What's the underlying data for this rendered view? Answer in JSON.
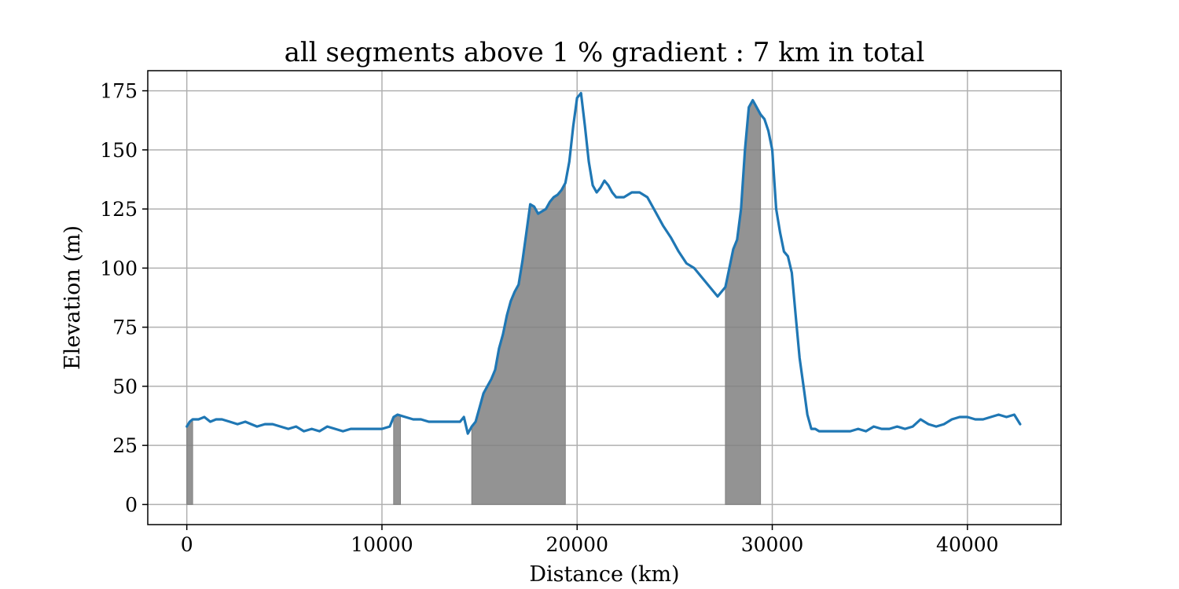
{
  "chart_data": {
    "type": "line",
    "title": "all segments above 1 % gradient : 7 km in total",
    "xlabel": "Distance (km)",
    "ylabel": "Elevation (m)",
    "xlim": [
      -2000,
      44800
    ],
    "ylim": [
      -8.5,
      183.5
    ],
    "xticks": [
      0,
      10000,
      20000,
      30000,
      40000
    ],
    "yticks": [
      0,
      25,
      50,
      75,
      100,
      125,
      150,
      175
    ],
    "xtick_labels": [
      "0",
      "10000",
      "20000",
      "30000",
      "40000"
    ],
    "ytick_labels": [
      "0",
      "25",
      "50",
      "75",
      "100",
      "125",
      "150",
      "175"
    ],
    "grid": true,
    "colors": {
      "line": "#1f77b4",
      "fill": "#808080",
      "grid": "#b0b0b0"
    },
    "series": [
      {
        "x": [
          0,
          150,
          300,
          600,
          900,
          1200,
          1500,
          1800,
          2200,
          2600,
          3000,
          3300,
          3600,
          4000,
          4400,
          4800,
          5200,
          5600,
          6000,
          6400,
          6800,
          7200,
          7600,
          8000,
          8400,
          8800,
          9200,
          9600,
          10000,
          10400,
          10600,
          10800,
          11200,
          11600,
          12000,
          12400,
          12800,
          13200,
          13600,
          14000,
          14200,
          14400,
          14600,
          14800,
          15000,
          15200,
          15400,
          15600,
          15800,
          16000,
          16200,
          16400,
          16600,
          16800,
          17000,
          17200,
          17400,
          17600,
          17800,
          18000,
          18200,
          18400,
          18600,
          18800,
          19000,
          19200,
          19400,
          19600,
          19800,
          20000,
          20200,
          20400,
          20600,
          20800,
          21000,
          21200,
          21400,
          21600,
          21800,
          22000,
          22400,
          22800,
          23200,
          23600,
          24000,
          24400,
          24800,
          25200,
          25600,
          26000,
          26400,
          26800,
          27200,
          27600,
          27800,
          28000,
          28200,
          28400,
          28600,
          28800,
          29000,
          29200,
          29400,
          29600,
          29800,
          30000,
          30200,
          30400,
          30600,
          30800,
          31000,
          31200,
          31400,
          31600,
          31800,
          32000,
          32200,
          32400,
          32800,
          33200,
          33600,
          34000,
          34400,
          34800,
          35200,
          35600,
          36000,
          36400,
          36800,
          37200,
          37600,
          38000,
          38400,
          38800,
          39200,
          39600,
          40000,
          40400,
          40800,
          41200,
          41600,
          42000,
          42400,
          42700
        ],
        "y": [
          33,
          35,
          36,
          36,
          37,
          35,
          36,
          36,
          35,
          34,
          35,
          34,
          33,
          34,
          34,
          33,
          32,
          33,
          31,
          32,
          31,
          33,
          32,
          31,
          32,
          32,
          32,
          32,
          32,
          33,
          37,
          38,
          37,
          36,
          36,
          35,
          35,
          35,
          35,
          35,
          37,
          30,
          33,
          35,
          41,
          47,
          50,
          53,
          57,
          66,
          72,
          80,
          86,
          90,
          93,
          103,
          115,
          127,
          126,
          123,
          124,
          125,
          128,
          130,
          131,
          133,
          136,
          145,
          160,
          172,
          174,
          160,
          145,
          135,
          132,
          134,
          137,
          135,
          132,
          130,
          130,
          132,
          132,
          130,
          124,
          118,
          113,
          107,
          102,
          100,
          96,
          92,
          88,
          92,
          100,
          108,
          112,
          125,
          150,
          168,
          171,
          168,
          165,
          163,
          158,
          150,
          125,
          115,
          107,
          105,
          98,
          80,
          62,
          50,
          38,
          32,
          32,
          31,
          31,
          31,
          31,
          31,
          32,
          31,
          33,
          32,
          32,
          33,
          32,
          33,
          36,
          34,
          33,
          34,
          36,
          37,
          37,
          36,
          36,
          37,
          38,
          37,
          38,
          34
        ]
      }
    ],
    "fill_segments": [
      [
        0,
        300
      ],
      [
        10600,
        10950
      ],
      [
        14600,
        19400
      ],
      [
        27600,
        29400
      ]
    ]
  }
}
